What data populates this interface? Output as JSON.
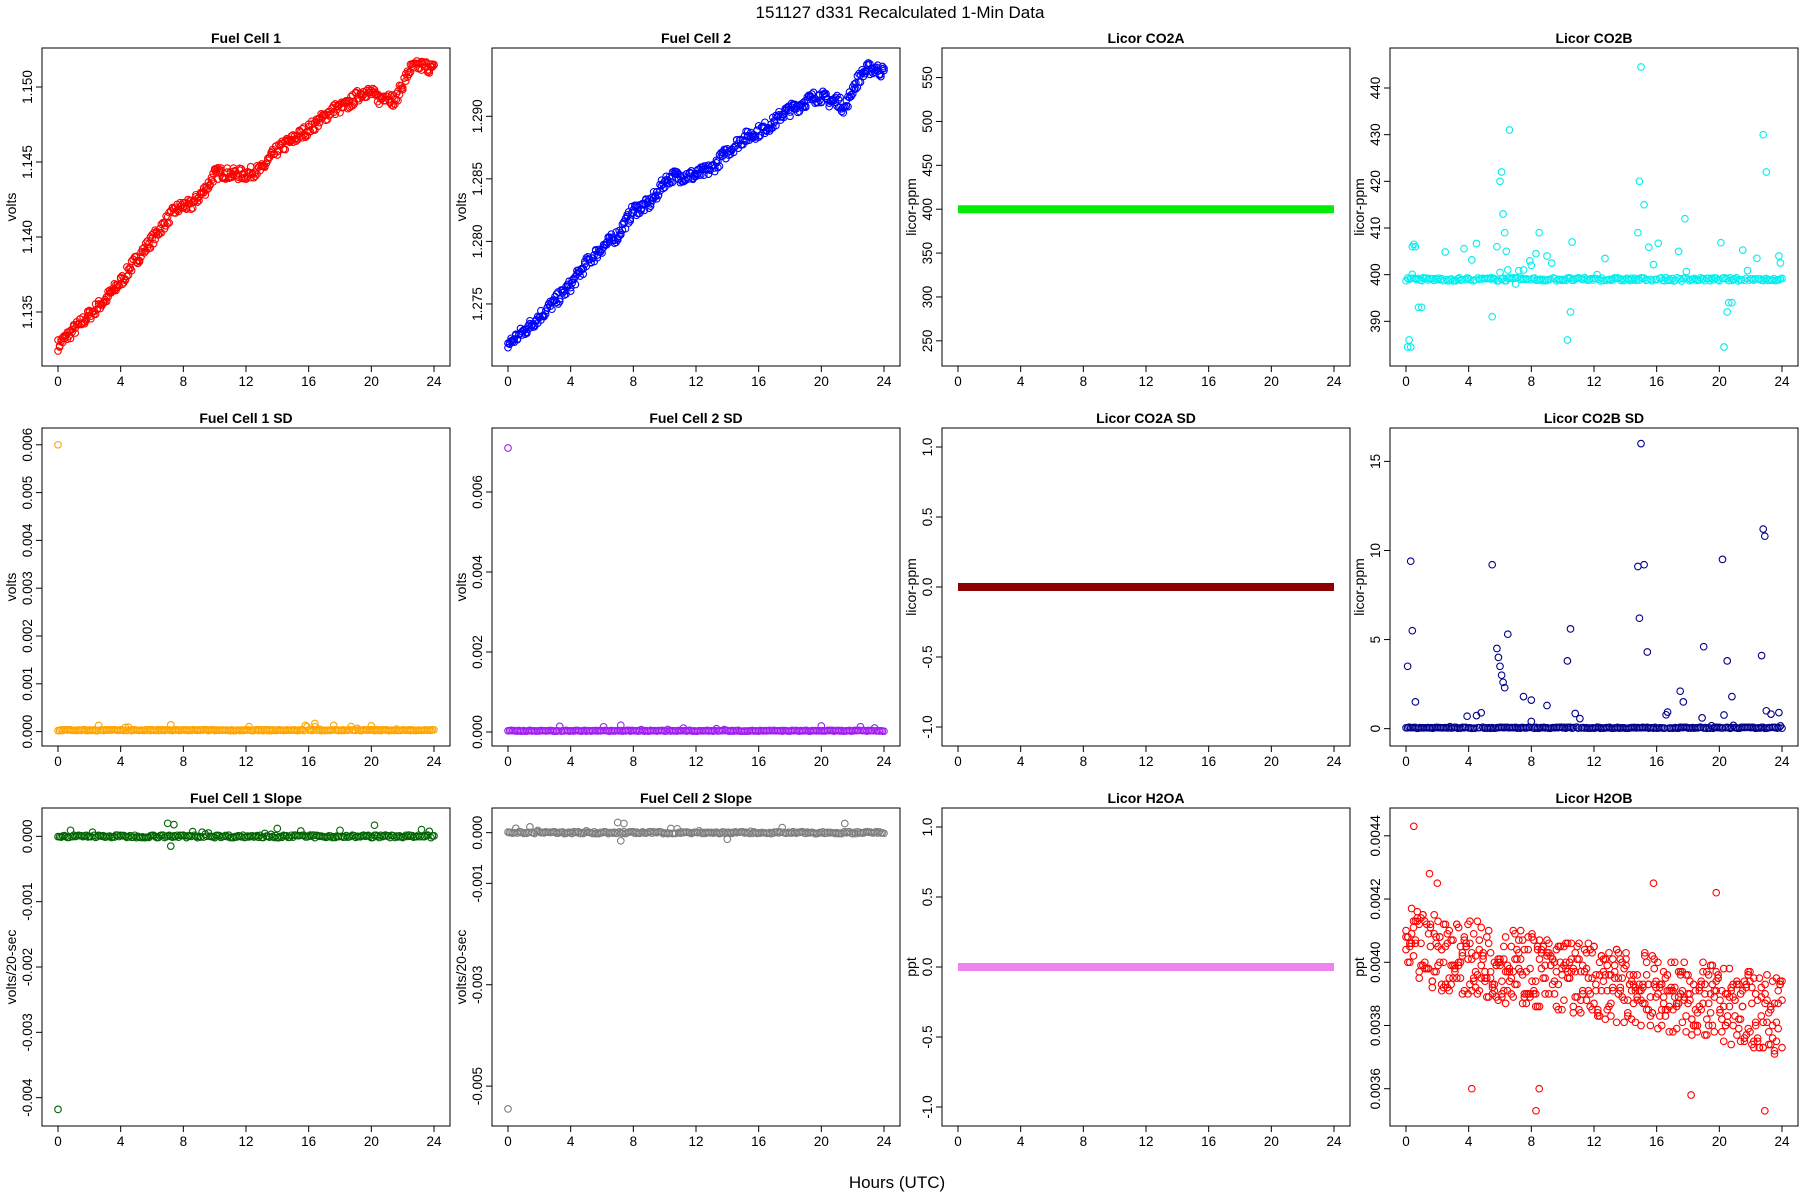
{
  "figure": {
    "title": "151127   d331   Recalculated 1-Min Data",
    "xlabel": "Hours (UTC)"
  },
  "chart_data": [
    {
      "type": "scatter",
      "title": "Fuel Cell 1",
      "ylabel": "volts",
      "color": "#ff0000",
      "xlim": [
        0,
        24
      ],
      "ylim": [
        1.1322,
        1.1518
      ],
      "xticks": [
        "0",
        "4",
        "8",
        "12",
        "16",
        "20",
        "24"
      ],
      "yticks": [
        "1.135",
        "1.140",
        "1.145",
        "1.150"
      ],
      "series": [
        {
          "pattern": "trend",
          "band": 0.0004,
          "x": [
            0,
            1,
            2,
            3,
            4,
            5,
            6,
            7,
            7.5,
            8,
            8.5,
            9,
            9.5,
            10,
            10.5,
            11,
            12,
            13,
            13.5,
            14,
            15,
            16,
            17,
            17.5,
            18,
            18.5,
            19,
            19.5,
            20,
            20.5,
            21,
            21.5,
            22,
            22.5,
            23,
            23.5,
            24
          ],
          "y": [
            1.1328,
            1.1338,
            1.1348,
            1.1358,
            1.137,
            1.1385,
            1.1398,
            1.1412,
            1.1418,
            1.1421,
            1.1421,
            1.1427,
            1.1433,
            1.1442,
            1.1443,
            1.1442,
            1.1442,
            1.1445,
            1.1452,
            1.1458,
            1.1465,
            1.1472,
            1.148,
            1.1485,
            1.1486,
            1.1488,
            1.1493,
            1.1497,
            1.1496,
            1.1492,
            1.1495,
            1.149,
            1.1502,
            1.1512,
            1.1514,
            1.1514,
            1.1512
          ]
        }
      ]
    },
    {
      "type": "scatter",
      "title": "Fuel Cell 2",
      "ylabel": "volts",
      "color": "#0000ff",
      "xlim": [
        0,
        24
      ],
      "ylim": [
        1.271,
        1.2945
      ],
      "xticks": [
        "0",
        "4",
        "8",
        "12",
        "16",
        "20",
        "24"
      ],
      "yticks": [
        "1.275",
        "1.280",
        "1.285",
        "1.290"
      ],
      "series": [
        {
          "pattern": "trend",
          "band": 0.0005,
          "x": [
            0,
            1,
            2,
            3,
            4,
            5,
            6,
            7,
            7.5,
            8,
            8.5,
            9,
            9.5,
            10,
            10.5,
            11,
            12,
            13,
            13.5,
            14,
            15,
            16,
            17,
            17.5,
            18,
            18.5,
            19,
            19.5,
            20,
            20.5,
            21,
            21.5,
            22,
            22.5,
            23,
            23.5,
            24
          ],
          "y": [
            1.2718,
            1.2728,
            1.274,
            1.2752,
            1.2765,
            1.2782,
            1.2795,
            1.2805,
            1.2815,
            1.2825,
            1.2827,
            1.283,
            1.2838,
            1.2848,
            1.2852,
            1.2852,
            1.2853,
            1.2858,
            1.2865,
            1.2872,
            1.2882,
            1.2888,
            1.2895,
            1.2902,
            1.2905,
            1.2908,
            1.2912,
            1.2915,
            1.2916,
            1.2912,
            1.2913,
            1.2906,
            1.2922,
            1.2932,
            1.2938,
            1.2938,
            1.2935
          ]
        }
      ]
    },
    {
      "type": "scatter",
      "title": "Licor CO2A",
      "ylabel": "licor-ppm",
      "color": "#00ee00",
      "xlim": [
        0,
        24
      ],
      "ylim": [
        235,
        570
      ],
      "xticks": [
        "0",
        "4",
        "8",
        "12",
        "16",
        "20",
        "24"
      ],
      "yticks": [
        "250",
        "300",
        "350",
        "400",
        "450",
        "500",
        "550"
      ],
      "series": [
        {
          "pattern": "constant",
          "value": 400
        }
      ]
    },
    {
      "type": "scatter",
      "title": "Licor CO2B",
      "ylabel": "licor-ppm",
      "color": "#00eeee",
      "xlim": [
        0,
        24
      ],
      "ylim": [
        383,
        446
      ],
      "xticks": [
        "0",
        "4",
        "8",
        "12",
        "16",
        "20",
        "24"
      ],
      "yticks": [
        "390",
        "400",
        "410",
        "420",
        "430",
        "440"
      ],
      "series": [
        {
          "pattern": "noisy",
          "base": 399,
          "noise": 0.35,
          "spike_rate": 0.055,
          "spike_max": 8,
          "x": [
            0.1,
            0.2,
            0.3,
            0.4,
            0.5,
            0.6,
            0.8,
            1.0,
            5.5,
            5.8,
            6.0,
            6.1,
            6.2,
            6.3,
            6.4,
            6.5,
            6.6,
            7.0,
            7.5,
            8.0,
            8.3,
            8.5,
            9.0,
            10.3,
            10.5,
            10.6,
            14.8,
            14.9,
            15.0,
            15.2,
            17.8,
            20.3,
            20.5,
            20.6,
            20.8,
            22.8,
            23.0,
            23.8,
            23.9
          ],
          "y": [
            384.5,
            386,
            384.5,
            406,
            406.5,
            406,
            393,
            393,
            391,
            406,
            420,
            422,
            413,
            409,
            405,
            401,
            431,
            398,
            401,
            402,
            404.5,
            409,
            404,
            386,
            392,
            407,
            409,
            420,
            444.5,
            415,
            412,
            384.5,
            392,
            394,
            394,
            430,
            422,
            404,
            402.5
          ]
        }
      ]
    },
    {
      "type": "scatter",
      "title": "Fuel Cell 1 SD",
      "ylabel": "volts",
      "color": "#ffa500",
      "xlim": [
        0,
        24
      ],
      "ylim": [
        -5e-05,
        0.0061
      ],
      "xticks": [
        "0",
        "4",
        "8",
        "12",
        "16",
        "20",
        "24"
      ],
      "yticks": [
        "0.000",
        "0.001",
        "0.002",
        "0.003",
        "0.004",
        "0.005",
        "0.006"
      ],
      "series": [
        {
          "pattern": "noisy",
          "base": 3e-05,
          "noise": 1e-05,
          "spike_rate": 0.05,
          "spike_max": 0.00012,
          "x": [
            0,
            7.2,
            16.4,
            20.0
          ],
          "y": [
            0.006,
            0.00014,
            0.00017,
            0.00012
          ]
        }
      ]
    },
    {
      "type": "scatter",
      "title": "Fuel Cell 2 SD",
      "ylabel": "volts",
      "color": "#a020f0",
      "xlim": [
        0,
        24
      ],
      "ylim": [
        -5e-05,
        0.0073
      ],
      "xticks": [
        "0",
        "4",
        "8",
        "12",
        "16",
        "20",
        "24"
      ],
      "yticks": [
        "0.000",
        "0.002",
        "0.004",
        "0.006"
      ],
      "series": [
        {
          "pattern": "noisy",
          "base": 3e-05,
          "noise": 1e-05,
          "spike_rate": 0.05,
          "spike_max": 0.00012,
          "x": [
            0,
            7.2,
            20.0
          ],
          "y": [
            0.0071,
            0.00017,
            0.00015
          ]
        }
      ]
    },
    {
      "type": "scatter",
      "title": "Licor CO2A SD",
      "ylabel": "licor-ppm",
      "color": "#8b0000",
      "xlim": [
        0,
        24
      ],
      "ylim": [
        -1.05,
        1.05
      ],
      "xticks": [
        "0",
        "4",
        "8",
        "12",
        "16",
        "20",
        "24"
      ],
      "yticks": [
        "-1.0",
        "-0.5",
        "0.0",
        "0.5",
        "1.0"
      ],
      "series": [
        {
          "pattern": "constant",
          "value": 0
        }
      ]
    },
    {
      "type": "scatter",
      "title": "Licor CO2B SD",
      "ylabel": "licor-ppm",
      "color": "#00008b",
      "xlim": [
        0,
        24
      ],
      "ylim": [
        -0.3,
        16.2
      ],
      "xticks": [
        "0",
        "4",
        "8",
        "12",
        "16",
        "20",
        "24"
      ],
      "yticks": [
        "0",
        "5",
        "10",
        "15"
      ],
      "series": [
        {
          "pattern": "noisy",
          "base": 0.05,
          "noise": 0.03,
          "spike_rate": 0.06,
          "spike_max": 0.9,
          "x": [
            0.1,
            0.3,
            0.4,
            0.6,
            5.5,
            5.8,
            5.9,
            6.0,
            6.1,
            6.2,
            6.3,
            6.5,
            7.5,
            8.0,
            9.0,
            10.3,
            10.5,
            14.8,
            14.9,
            15.0,
            15.2,
            15.4,
            17.5,
            17.7,
            19.0,
            20.2,
            20.5,
            20.8,
            22.7,
            22.8,
            22.9,
            23.0,
            23.8
          ],
          "y": [
            3.5,
            9.4,
            5.5,
            1.5,
            9.2,
            4.5,
            4.0,
            3.5,
            3.0,
            2.6,
            2.3,
            5.3,
            1.8,
            1.6,
            1.3,
            3.8,
            5.6,
            9.1,
            6.2,
            16.0,
            9.2,
            4.3,
            2.1,
            1.5,
            4.6,
            9.5,
            3.8,
            1.8,
            4.1,
            11.2,
            10.8,
            1.0,
            0.9
          ]
        }
      ]
    },
    {
      "type": "scatter",
      "title": "Fuel Cell 1 Slope",
      "ylabel": "volts/20-sec",
      "color": "#006400",
      "xlim": [
        0,
        24
      ],
      "ylim": [
        -0.00425,
        0.00025
      ],
      "xticks": [
        "0",
        "4",
        "8",
        "12",
        "16",
        "20",
        "24"
      ],
      "yticks": [
        "-0.004",
        "-0.003",
        "-0.002",
        "-0.001",
        "0.000"
      ],
      "series": [
        {
          "pattern": "noisy",
          "base": 0,
          "noise": 2e-05,
          "spike_rate": 0.07,
          "spike_max": 0.00011,
          "x": [
            0,
            7.0,
            7.2,
            7.4,
            14.0,
            20.2
          ],
          "y": [
            -0.00418,
            0.0002,
            -0.00015,
            0.00018,
            0.00012,
            0.00017
          ]
        }
      ]
    },
    {
      "type": "scatter",
      "title": "Fuel Cell 2 Slope",
      "ylabel": "volts/20-sec",
      "color": "#7f7f7f",
      "xlim": [
        0,
        24
      ],
      "ylim": [
        -0.00555,
        0.00025
      ],
      "xticks": [
        "0",
        "4",
        "8",
        "12",
        "16",
        "20",
        "24"
      ],
      "yticks": [
        "-0.005",
        "-0.003",
        "-0.001",
        "0.000"
      ],
      "series": [
        {
          "pattern": "noisy",
          "base": 0,
          "noise": 2e-05,
          "spike_rate": 0.07,
          "spike_max": 0.00012,
          "x": [
            0,
            7.0,
            7.2,
            7.4,
            14.0,
            21.5
          ],
          "y": [
            -0.00545,
            0.0002,
            -0.00016,
            0.00018,
            -0.00013,
            0.00018
          ]
        }
      ]
    },
    {
      "type": "scatter",
      "title": "Licor H2OA",
      "ylabel": "ppt",
      "color": "#ee82ee",
      "xlim": [
        0,
        24
      ],
      "ylim": [
        -1.05,
        1.05
      ],
      "xticks": [
        "0",
        "4",
        "8",
        "12",
        "16",
        "20",
        "24"
      ],
      "yticks": [
        "-1.0",
        "-0.5",
        "0.0",
        "0.5",
        "1.0"
      ],
      "series": [
        {
          "pattern": "constant",
          "value": 0
        }
      ]
    },
    {
      "type": "scatter",
      "title": "Licor H2OB",
      "ylabel": "ppt",
      "color": "#ff0000",
      "xlim": [
        0,
        24
      ],
      "ylim": [
        0.00352,
        0.00445
      ],
      "xticks": [
        "0",
        "4",
        "8",
        "12",
        "16",
        "20",
        "24"
      ],
      "yticks": [
        "0.0036",
        "0.0038",
        "0.0040",
        "0.0042",
        "0.0044"
      ],
      "series": [
        {
          "pattern": "quantized",
          "step": 1e-05,
          "start": 0.00405,
          "end": 0.00383,
          "spread": 0.00012,
          "x": [
            0.5,
            1.5,
            2.0,
            4.2,
            8.3,
            8.5,
            15.8,
            18.2,
            19.8,
            22.9
          ],
          "y": [
            0.00443,
            0.00428,
            0.00425,
            0.0036,
            0.00353,
            0.0036,
            0.00425,
            0.00358,
            0.00422,
            0.00353
          ]
        }
      ]
    }
  ]
}
